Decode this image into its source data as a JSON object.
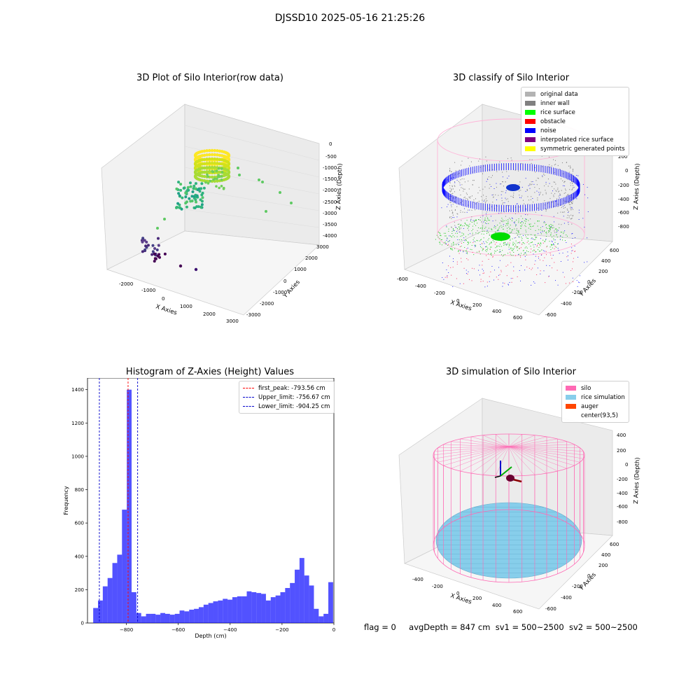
{
  "figure": {
    "suptitle": "DJSSD10 2025-05-16 21:25:26",
    "status": {
      "flag": "flag = 0",
      "avg_depth": "avgDepth = 847 cm",
      "sv1": "sv1 = 500~2500",
      "sv2": "sv2 = 500~2500"
    }
  },
  "panels": {
    "raw": {
      "title": "3D Plot of Silo Interior(row data)",
      "xlabel": "X Axies",
      "ylabel": "Y Axies",
      "zlabel": "Z Axies (Depth)",
      "xticks": [
        "-2000",
        "-1000",
        "0",
        "1000",
        "2000",
        "3000"
      ],
      "yticks": [
        "-3000",
        "-2000",
        "-1000",
        "0",
        "1000",
        "2000",
        "3000"
      ],
      "zticks": [
        "0",
        "-500",
        "-1000",
        "-1500",
        "-2000",
        "-2500",
        "-3000",
        "-3500",
        "-4000"
      ]
    },
    "classify": {
      "title": "3D classify of Silo Interior",
      "xlabel": "X Axies",
      "ylabel": "Y Axies",
      "zlabel": "Z Axies (Depth)",
      "xticks": [
        "-600",
        "-400",
        "-200",
        "0",
        "200",
        "400",
        "600"
      ],
      "yticks": [
        "-600",
        "-400",
        "-200",
        "0",
        "200",
        "400",
        "600"
      ],
      "zticks": [
        "200",
        "0",
        "-200",
        "-400",
        "-600",
        "-800"
      ],
      "legend": [
        {
          "label": "original data",
          "color": "#b3b3b3"
        },
        {
          "label": "inner wall",
          "color": "#808080"
        },
        {
          "label": "rice surface",
          "color": "#00ff00"
        },
        {
          "label": "obstacle",
          "color": "#ff0000"
        },
        {
          "label": "noise",
          "color": "#0000ff"
        },
        {
          "label": "interpolated rice surface",
          "color": "#800080"
        },
        {
          "label": "symmetric generated points",
          "color": "#ffff00"
        }
      ]
    },
    "simulation": {
      "title": "3D simulation of Silo Interior",
      "xlabel": "X Axies",
      "ylabel": "Y Axies",
      "zlabel": "Z Axies (Depth)",
      "xticks": [
        "-400",
        "-200",
        "0",
        "200",
        "400",
        "600"
      ],
      "yticks": [
        "-600",
        "-400",
        "-200",
        "0",
        "200",
        "400",
        "600"
      ],
      "zticks": [
        "400",
        "200",
        "0",
        "-200",
        "-400",
        "-600",
        "-800"
      ],
      "legend": [
        {
          "label": "silo",
          "color": "#ff69b4"
        },
        {
          "label": "rice simulation",
          "color": "#87ceeb"
        },
        {
          "label": "auger",
          "color": "#ff4500"
        },
        {
          "label": "center(93,5)",
          "color": ""
        }
      ]
    }
  },
  "chart_data": [
    {
      "type": "histogram",
      "title": "Histogram of Z-Axies (Height) Values",
      "xlabel": "Depth (cm)",
      "ylabel": "Frequency",
      "bar_color": "#0000ff",
      "xlim": [
        -950,
        0
      ],
      "ylim": [
        0,
        1470
      ],
      "xticks": [
        -800,
        -600,
        -400,
        -200,
        0
      ],
      "xtick_labels": [
        "−800",
        "−600",
        "−400",
        "−200",
        "0"
      ],
      "yticks": [
        0,
        200,
        400,
        600,
        800,
        1000,
        1200,
        1400
      ],
      "bin_start": -928,
      "bin_width": 18.5,
      "frequencies": [
        90,
        135,
        220,
        270,
        360,
        410,
        680,
        1400,
        185,
        60,
        40,
        55,
        55,
        50,
        60,
        55,
        50,
        55,
        75,
        70,
        80,
        85,
        95,
        110,
        120,
        130,
        135,
        145,
        140,
        155,
        160,
        160,
        190,
        185,
        180,
        175,
        135,
        155,
        165,
        185,
        210,
        240,
        320,
        390,
        285,
        225,
        85,
        40,
        55,
        245
      ],
      "lines": [
        {
          "label": "first_peak: -793.56 cm",
          "x": -793.56,
          "color": "#ff0000"
        },
        {
          "label": "Upper_limit: -756.67 cm",
          "x": -756.67,
          "color": "#0000cc"
        },
        {
          "label": "Lower_limit: -904.25 cm",
          "x": -904.25,
          "color": "#0000cc"
        }
      ]
    }
  ]
}
